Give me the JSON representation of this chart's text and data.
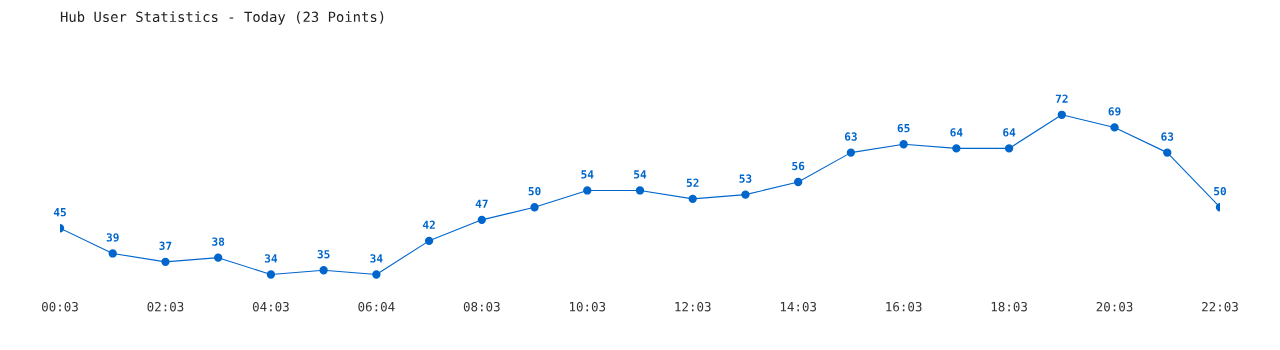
{
  "chart_data": {
    "type": "line",
    "title": "Hub User Statistics - Today (23 Points)",
    "categories": [
      "00:03",
      null,
      "02:03",
      null,
      "04:03",
      null,
      "06:04",
      null,
      "08:03",
      null,
      "10:03",
      null,
      "12:03",
      null,
      "14:03",
      null,
      "16:03",
      null,
      "18:03",
      null,
      "20:03",
      null,
      "22:03"
    ],
    "series": [
      {
        "color": "#0066cc",
        "values": [
          45,
          39,
          37,
          38,
          34,
          35,
          34,
          42,
          47,
          50,
          54,
          54,
          52,
          53,
          56,
          63,
          65,
          64,
          64,
          72,
          69,
          63,
          50
        ]
      }
    ],
    "data_labels": true,
    "marker": "circle",
    "line_style": "solid",
    "grid": false,
    "legend": false
  }
}
